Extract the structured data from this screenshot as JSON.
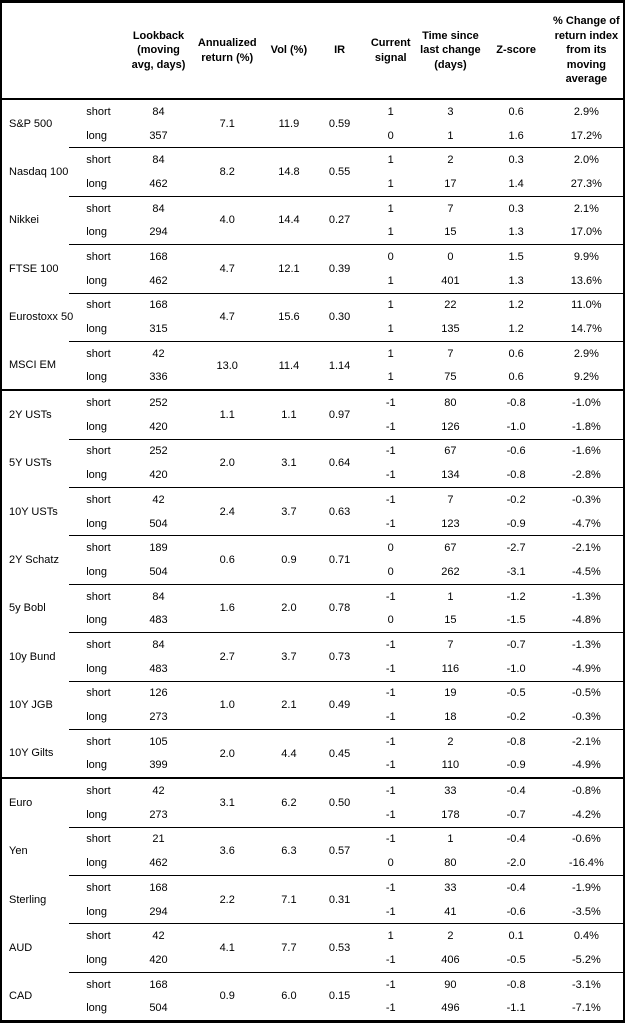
{
  "colors": {
    "text": "#000000",
    "background": "#ffffff",
    "rule": "#000000"
  },
  "table": {
    "columns": [
      {
        "id": "asset",
        "label": ""
      },
      {
        "id": "horizon",
        "label": ""
      },
      {
        "id": "lookback",
        "label": "Lookback (moving avg, days)"
      },
      {
        "id": "annualized-return",
        "label": "Annualized return (%)"
      },
      {
        "id": "vol",
        "label": "Vol (%)"
      },
      {
        "id": "ir",
        "label": "IR"
      },
      {
        "id": "current-signal",
        "label": "Current signal"
      },
      {
        "id": "time-since-last-change",
        "label": "Time since last change (days)"
      },
      {
        "id": "z-score",
        "label": "Z-score"
      },
      {
        "id": "pct-change",
        "label": "% Change of return index from its moving average"
      }
    ],
    "sections": [
      {
        "name": "equities",
        "assets": [
          {
            "name": "S&P 500",
            "annualized_return": "7.1",
            "vol": "11.9",
            "ir": "0.59",
            "rows": [
              {
                "horizon": "short",
                "lookback": "84",
                "signal": "1",
                "time_since": "3",
                "zscore": "0.6",
                "pct_change": "2.9%"
              },
              {
                "horizon": "long",
                "lookback": "357",
                "signal": "0",
                "time_since": "1",
                "zscore": "1.6",
                "pct_change": "17.2%"
              }
            ]
          },
          {
            "name": "Nasdaq 100",
            "annualized_return": "8.2",
            "vol": "14.8",
            "ir": "0.55",
            "rows": [
              {
                "horizon": "short",
                "lookback": "84",
                "signal": "1",
                "time_since": "2",
                "zscore": "0.3",
                "pct_change": "2.0%"
              },
              {
                "horizon": "long",
                "lookback": "462",
                "signal": "1",
                "time_since": "17",
                "zscore": "1.4",
                "pct_change": "27.3%"
              }
            ]
          },
          {
            "name": "Nikkei",
            "annualized_return": "4.0",
            "vol": "14.4",
            "ir": "0.27",
            "rows": [
              {
                "horizon": "short",
                "lookback": "84",
                "signal": "1",
                "time_since": "7",
                "zscore": "0.3",
                "pct_change": "2.1%"
              },
              {
                "horizon": "long",
                "lookback": "294",
                "signal": "1",
                "time_since": "15",
                "zscore": "1.3",
                "pct_change": "17.0%"
              }
            ]
          },
          {
            "name": "FTSE 100",
            "annualized_return": "4.7",
            "vol": "12.1",
            "ir": "0.39",
            "rows": [
              {
                "horizon": "short",
                "lookback": "168",
                "signal": "0",
                "time_since": "0",
                "zscore": "1.5",
                "pct_change": "9.9%"
              },
              {
                "horizon": "long",
                "lookback": "462",
                "signal": "1",
                "time_since": "401",
                "zscore": "1.3",
                "pct_change": "13.6%"
              }
            ]
          },
          {
            "name": "Eurostoxx 50",
            "annualized_return": "4.7",
            "vol": "15.6",
            "ir": "0.30",
            "rows": [
              {
                "horizon": "short",
                "lookback": "168",
                "signal": "1",
                "time_since": "22",
                "zscore": "1.2",
                "pct_change": "11.0%"
              },
              {
                "horizon": "long",
                "lookback": "315",
                "signal": "1",
                "time_since": "135",
                "zscore": "1.2",
                "pct_change": "14.7%"
              }
            ]
          },
          {
            "name": "MSCI EM",
            "annualized_return": "13.0",
            "vol": "11.4",
            "ir": "1.14",
            "rows": [
              {
                "horizon": "short",
                "lookback": "42",
                "signal": "1",
                "time_since": "7",
                "zscore": "0.6",
                "pct_change": "2.9%"
              },
              {
                "horizon": "long",
                "lookback": "336",
                "signal": "1",
                "time_since": "75",
                "zscore": "0.6",
                "pct_change": "9.2%"
              }
            ]
          }
        ]
      },
      {
        "name": "bonds",
        "assets": [
          {
            "name": "2Y USTs",
            "annualized_return": "1.1",
            "vol": "1.1",
            "ir": "0.97",
            "rows": [
              {
                "horizon": "short",
                "lookback": "252",
                "signal": "-1",
                "time_since": "80",
                "zscore": "-0.8",
                "pct_change": "-1.0%"
              },
              {
                "horizon": "long",
                "lookback": "420",
                "signal": "-1",
                "time_since": "126",
                "zscore": "-1.0",
                "pct_change": "-1.8%"
              }
            ]
          },
          {
            "name": "5Y USTs",
            "annualized_return": "2.0",
            "vol": "3.1",
            "ir": "0.64",
            "rows": [
              {
                "horizon": "short",
                "lookback": "252",
                "signal": "-1",
                "time_since": "67",
                "zscore": "-0.6",
                "pct_change": "-1.6%"
              },
              {
                "horizon": "long",
                "lookback": "420",
                "signal": "-1",
                "time_since": "134",
                "zscore": "-0.8",
                "pct_change": "-2.8%"
              }
            ]
          },
          {
            "name": "10Y USTs",
            "annualized_return": "2.4",
            "vol": "3.7",
            "ir": "0.63",
            "rows": [
              {
                "horizon": "short",
                "lookback": "42",
                "signal": "-1",
                "time_since": "7",
                "zscore": "-0.2",
                "pct_change": "-0.3%"
              },
              {
                "horizon": "long",
                "lookback": "504",
                "signal": "-1",
                "time_since": "123",
                "zscore": "-0.9",
                "pct_change": "-4.7%"
              }
            ]
          },
          {
            "name": "2Y Schatz",
            "annualized_return": "0.6",
            "vol": "0.9",
            "ir": "0.71",
            "rows": [
              {
                "horizon": "short",
                "lookback": "189",
                "signal": "0",
                "time_since": "67",
                "zscore": "-2.7",
                "pct_change": "-2.1%"
              },
              {
                "horizon": "long",
                "lookback": "504",
                "signal": "0",
                "time_since": "262",
                "zscore": "-3.1",
                "pct_change": "-4.5%"
              }
            ]
          },
          {
            "name": "5y Bobl",
            "annualized_return": "1.6",
            "vol": "2.0",
            "ir": "0.78",
            "rows": [
              {
                "horizon": "short",
                "lookback": "84",
                "signal": "-1",
                "time_since": "1",
                "zscore": "-1.2",
                "pct_change": "-1.3%"
              },
              {
                "horizon": "long",
                "lookback": "483",
                "signal": "0",
                "time_since": "15",
                "zscore": "-1.5",
                "pct_change": "-4.8%"
              }
            ]
          },
          {
            "name": "10y Bund",
            "annualized_return": "2.7",
            "vol": "3.7",
            "ir": "0.73",
            "rows": [
              {
                "horizon": "short",
                "lookback": "84",
                "signal": "-1",
                "time_since": "7",
                "zscore": "-0.7",
                "pct_change": "-1.3%"
              },
              {
                "horizon": "long",
                "lookback": "483",
                "signal": "-1",
                "time_since": "116",
                "zscore": "-1.0",
                "pct_change": "-4.9%"
              }
            ]
          },
          {
            "name": "10Y JGB",
            "annualized_return": "1.0",
            "vol": "2.1",
            "ir": "0.49",
            "rows": [
              {
                "horizon": "short",
                "lookback": "126",
                "signal": "-1",
                "time_since": "19",
                "zscore": "-0.5",
                "pct_change": "-0.5%"
              },
              {
                "horizon": "long",
                "lookback": "273",
                "signal": "-1",
                "time_since": "18",
                "zscore": "-0.2",
                "pct_change": "-0.3%"
              }
            ]
          },
          {
            "name": "10Y Gilts",
            "annualized_return": "2.0",
            "vol": "4.4",
            "ir": "0.45",
            "rows": [
              {
                "horizon": "short",
                "lookback": "105",
                "signal": "-1",
                "time_since": "2",
                "zscore": "-0.8",
                "pct_change": "-2.1%"
              },
              {
                "horizon": "long",
                "lookback": "399",
                "signal": "-1",
                "time_since": "110",
                "zscore": "-0.9",
                "pct_change": "-4.9%"
              }
            ]
          }
        ]
      },
      {
        "name": "fx",
        "assets": [
          {
            "name": "Euro",
            "annualized_return": "3.1",
            "vol": "6.2",
            "ir": "0.50",
            "rows": [
              {
                "horizon": "short",
                "lookback": "42",
                "signal": "-1",
                "time_since": "33",
                "zscore": "-0.4",
                "pct_change": "-0.8%"
              },
              {
                "horizon": "long",
                "lookback": "273",
                "signal": "-1",
                "time_since": "178",
                "zscore": "-0.7",
                "pct_change": "-4.2%"
              }
            ]
          },
          {
            "name": "Yen",
            "annualized_return": "3.6",
            "vol": "6.3",
            "ir": "0.57",
            "rows": [
              {
                "horizon": "short",
                "lookback": "21",
                "signal": "-1",
                "time_since": "1",
                "zscore": "-0.4",
                "pct_change": "-0.6%"
              },
              {
                "horizon": "long",
                "lookback": "462",
                "signal": "0",
                "time_since": "80",
                "zscore": "-2.0",
                "pct_change": "-16.4%"
              }
            ]
          },
          {
            "name": "Sterling",
            "annualized_return": "2.2",
            "vol": "7.1",
            "ir": "0.31",
            "rows": [
              {
                "horizon": "short",
                "lookback": "168",
                "signal": "-1",
                "time_since": "33",
                "zscore": "-0.4",
                "pct_change": "-1.9%"
              },
              {
                "horizon": "long",
                "lookback": "294",
                "signal": "-1",
                "time_since": "41",
                "zscore": "-0.6",
                "pct_change": "-3.5%"
              }
            ]
          },
          {
            "name": "AUD",
            "annualized_return": "4.1",
            "vol": "7.7",
            "ir": "0.53",
            "rows": [
              {
                "horizon": "short",
                "lookback": "42",
                "signal": "1",
                "time_since": "2",
                "zscore": "0.1",
                "pct_change": "0.4%"
              },
              {
                "horizon": "long",
                "lookback": "420",
                "signal": "-1",
                "time_since": "406",
                "zscore": "-0.5",
                "pct_change": "-5.2%"
              }
            ]
          },
          {
            "name": "CAD",
            "annualized_return": "0.9",
            "vol": "6.0",
            "ir": "0.15",
            "rows": [
              {
                "horizon": "short",
                "lookback": "168",
                "signal": "-1",
                "time_since": "90",
                "zscore": "-0.8",
                "pct_change": "-3.1%"
              },
              {
                "horizon": "long",
                "lookback": "504",
                "signal": "-1",
                "time_since": "496",
                "zscore": "-1.1",
                "pct_change": "-7.1%"
              }
            ]
          }
        ]
      }
    ]
  }
}
